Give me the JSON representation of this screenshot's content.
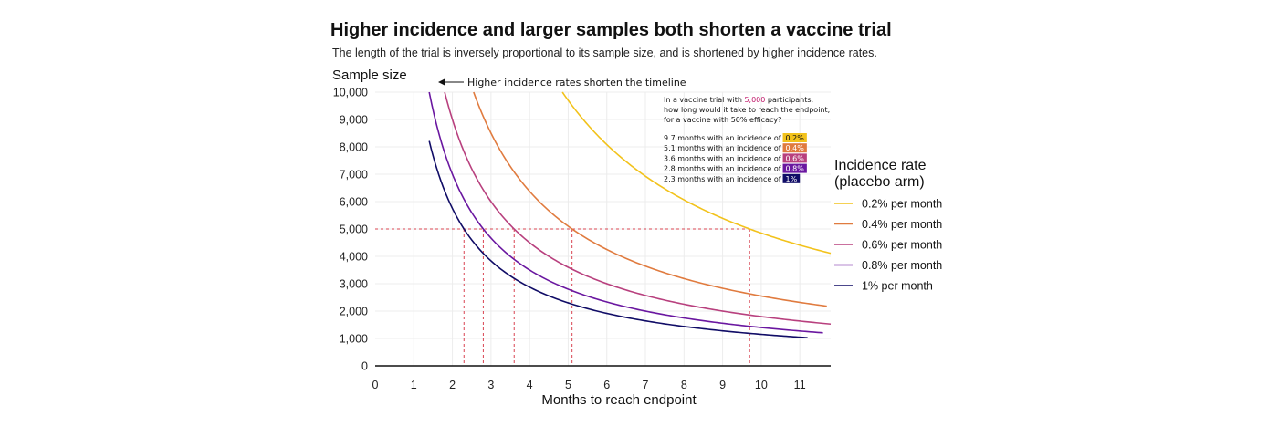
{
  "title": "Higher incidence and larger samples both shorten a vaccine trial",
  "subtitle": "The length of the trial is inversely proportional to its sample size, and is shortened by higher incidence rates.",
  "annotation": {
    "arrow_text": "Higher incidence rates shorten the timeline",
    "question_prefix": "In a vaccine trial with ",
    "question_highlight": "5,000",
    "question_suffix": " participants,",
    "question_line2": "how long would it take to reach the endpoint,",
    "question_line3": "for a vaccine with 50% efficacy?",
    "answers": [
      {
        "text": "9.7 months with an incidence of",
        "badge": "0.2%"
      },
      {
        "text": "5.1 months with an incidence of",
        "badge": "0.4%"
      },
      {
        "text": "3.6 months with an incidence of",
        "badge": "0.6%"
      },
      {
        "text": "2.8 months with an incidence of",
        "badge": "0.8%"
      },
      {
        "text": "2.3 months with an incidence of",
        "badge": "1%"
      }
    ]
  },
  "legend": {
    "title_line1": "Incidence rate",
    "title_line2": "(placebo arm)"
  },
  "colors": {
    "s02": "#f2c21b",
    "s04": "#e07b3f",
    "s06": "#b8407e",
    "s08": "#6a17a0",
    "s10": "#100c66",
    "reference": "#d94452"
  },
  "chart_data": {
    "type": "line",
    "title": "Higher incidence and larger samples both shorten a vaccine trial",
    "subtitle": "The length of the trial is inversely proportional to its sample size, and is shortened by higher incidence rates.",
    "xlabel": "Months to reach endpoint",
    "ylabel": "Sample size",
    "xlim": [
      0,
      11.8
    ],
    "ylim": [
      0,
      10000
    ],
    "x_ticks": [
      "0",
      "1",
      "2",
      "3",
      "4",
      "5",
      "6",
      "7",
      "8",
      "9",
      "10",
      "11"
    ],
    "y_ticks": [
      "0",
      "1,000",
      "2,000",
      "3,000",
      "4,000",
      "5,000",
      "6,000",
      "7,000",
      "8,000",
      "9,000",
      "10,000"
    ],
    "grid": true,
    "legend_position": "right",
    "series": [
      {
        "name": "0.2% per month",
        "k": 48500,
        "x_min": 4.85,
        "x_max": 11.8
      },
      {
        "name": "0.4% per month",
        "k": 25500,
        "x_min": 2.55,
        "x_max": 11.7
      },
      {
        "name": "0.6% per month",
        "k": 18000,
        "x_min": 1.8,
        "x_max": 11.8
      },
      {
        "name": "0.8% per month",
        "k": 14000,
        "x_min": 1.4,
        "x_max": 11.6
      },
      {
        "name": "1% per month",
        "k": 11500,
        "x_min": 1.4,
        "x_max": 11.2
      }
    ],
    "reference_y": 5000,
    "reference_x": [
      2.3,
      2.8,
      3.6,
      5.1,
      9.7
    ]
  }
}
